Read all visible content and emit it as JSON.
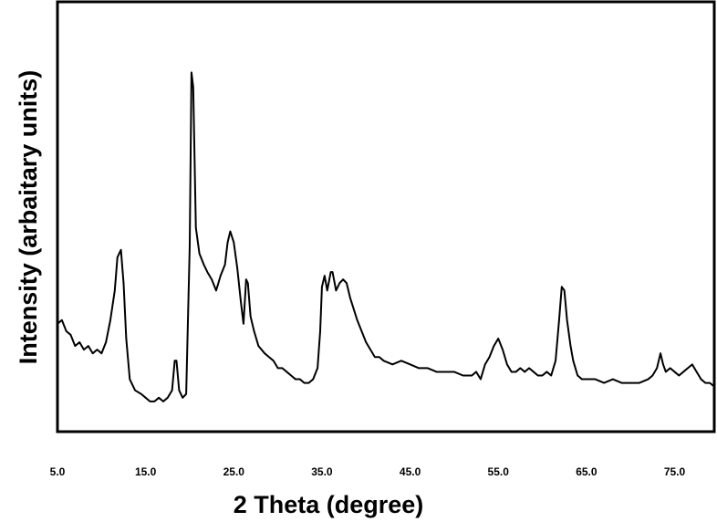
{
  "chart_data": {
    "type": "line",
    "title": "",
    "xlabel": "2 Theta (degree)",
    "ylabel": "Intensity (arbaitary units)",
    "xlim": [
      5,
      79.5
    ],
    "ylim": [
      0,
      100
    ],
    "x_ticks": [
      5,
      15,
      25,
      35,
      45,
      55,
      65,
      75
    ],
    "x_tick_labels": [
      "5.0",
      "15.0",
      "25.0",
      "35.0",
      "45.0",
      "55.0",
      "65.0",
      "75.0"
    ],
    "y_ticks_shown": false,
    "grid": false,
    "legend": "none",
    "series": [
      {
        "color": "#000000",
        "points": [
          [
            5.0,
            24
          ],
          [
            5.5,
            25
          ],
          [
            6.0,
            22
          ],
          [
            6.5,
            21
          ],
          [
            7.0,
            18
          ],
          [
            7.5,
            19
          ],
          [
            8.0,
            17
          ],
          [
            8.5,
            18
          ],
          [
            9.0,
            16
          ],
          [
            9.5,
            17
          ],
          [
            10.0,
            16
          ],
          [
            10.5,
            19
          ],
          [
            11.0,
            25
          ],
          [
            11.5,
            33
          ],
          [
            11.8,
            42
          ],
          [
            12.2,
            44
          ],
          [
            12.5,
            35
          ],
          [
            12.8,
            20
          ],
          [
            13.2,
            9
          ],
          [
            13.8,
            6
          ],
          [
            14.5,
            5
          ],
          [
            15.0,
            4
          ],
          [
            15.5,
            3
          ],
          [
            16.0,
            3
          ],
          [
            16.5,
            4
          ],
          [
            17.0,
            3
          ],
          [
            17.5,
            4
          ],
          [
            18.0,
            6
          ],
          [
            18.3,
            14
          ],
          [
            18.5,
            14
          ],
          [
            18.8,
            6
          ],
          [
            19.2,
            4
          ],
          [
            19.6,
            5
          ],
          [
            20.0,
            45
          ],
          [
            20.2,
            92
          ],
          [
            20.4,
            88
          ],
          [
            20.7,
            50
          ],
          [
            21.1,
            43
          ],
          [
            21.6,
            40
          ],
          [
            22.0,
            38
          ],
          [
            22.5,
            36
          ],
          [
            23.0,
            33
          ],
          [
            23.5,
            37
          ],
          [
            24.0,
            40
          ],
          [
            24.3,
            46
          ],
          [
            24.6,
            49
          ],
          [
            25.0,
            46
          ],
          [
            25.4,
            39
          ],
          [
            25.8,
            30
          ],
          [
            26.1,
            24
          ],
          [
            26.4,
            36
          ],
          [
            26.6,
            35
          ],
          [
            26.9,
            26
          ],
          [
            27.3,
            22
          ],
          [
            27.8,
            18
          ],
          [
            28.5,
            16
          ],
          [
            29.0,
            15
          ],
          [
            29.5,
            14
          ],
          [
            30.0,
            12
          ],
          [
            30.5,
            12
          ],
          [
            31.0,
            11
          ],
          [
            31.5,
            10
          ],
          [
            32.0,
            9
          ],
          [
            32.5,
            9
          ],
          [
            33.0,
            8
          ],
          [
            33.5,
            8
          ],
          [
            34.0,
            9
          ],
          [
            34.5,
            12
          ],
          [
            34.8,
            22
          ],
          [
            35.0,
            34
          ],
          [
            35.3,
            37
          ],
          [
            35.6,
            33
          ],
          [
            36.0,
            38
          ],
          [
            36.2,
            38
          ],
          [
            36.6,
            33
          ],
          [
            37.0,
            35
          ],
          [
            37.4,
            36
          ],
          [
            37.8,
            35
          ],
          [
            38.2,
            31
          ],
          [
            38.6,
            28
          ],
          [
            39.0,
            25
          ],
          [
            39.5,
            22
          ],
          [
            40.0,
            19
          ],
          [
            40.5,
            17
          ],
          [
            41.0,
            15
          ],
          [
            41.5,
            15
          ],
          [
            42.0,
            14
          ],
          [
            43.0,
            13
          ],
          [
            44.0,
            14
          ],
          [
            45.0,
            13
          ],
          [
            46.0,
            12
          ],
          [
            47.0,
            12
          ],
          [
            48.0,
            11
          ],
          [
            49.0,
            11
          ],
          [
            50.0,
            11
          ],
          [
            51.0,
            10
          ],
          [
            52.0,
            10
          ],
          [
            52.5,
            11
          ],
          [
            53.0,
            9
          ],
          [
            53.5,
            13
          ],
          [
            54.0,
            15
          ],
          [
            54.5,
            18
          ],
          [
            55.0,
            20
          ],
          [
            55.5,
            17
          ],
          [
            56.0,
            13
          ],
          [
            56.5,
            11
          ],
          [
            57.0,
            11
          ],
          [
            57.5,
            12
          ],
          [
            58.0,
            11
          ],
          [
            58.5,
            12
          ],
          [
            59.0,
            11
          ],
          [
            59.5,
            10
          ],
          [
            60.0,
            10
          ],
          [
            60.5,
            11
          ],
          [
            61.0,
            10
          ],
          [
            61.5,
            14
          ],
          [
            61.9,
            25
          ],
          [
            62.2,
            34
          ],
          [
            62.5,
            33
          ],
          [
            62.8,
            25
          ],
          [
            63.2,
            18
          ],
          [
            63.5,
            14
          ],
          [
            64.0,
            10
          ],
          [
            64.5,
            9
          ],
          [
            65.0,
            9
          ],
          [
            66.0,
            9
          ],
          [
            67.0,
            8
          ],
          [
            68.0,
            9
          ],
          [
            69.0,
            8
          ],
          [
            70.0,
            8
          ],
          [
            71.0,
            8
          ],
          [
            72.0,
            9
          ],
          [
            72.5,
            10
          ],
          [
            73.0,
            12
          ],
          [
            73.4,
            16
          ],
          [
            73.7,
            13
          ],
          [
            74.0,
            11
          ],
          [
            74.5,
            12
          ],
          [
            75.0,
            11
          ],
          [
            75.5,
            10
          ],
          [
            76.0,
            11
          ],
          [
            76.5,
            12
          ],
          [
            77.0,
            13
          ],
          [
            77.5,
            11
          ],
          [
            78.0,
            9
          ],
          [
            78.5,
            8
          ],
          [
            79.0,
            8
          ],
          [
            79.5,
            7
          ]
        ]
      }
    ]
  }
}
